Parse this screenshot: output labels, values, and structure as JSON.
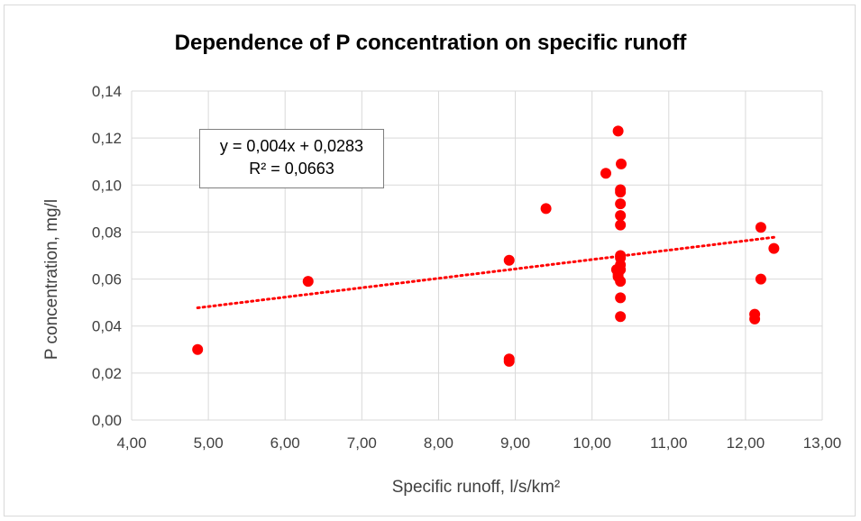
{
  "chart_data": {
    "type": "scatter",
    "title": "Dependence of P concentration on specific runoff",
    "xlabel": "Specific runoff, l/s/km²",
    "ylabel": "P concentration, mg/l",
    "xlim": [
      4.0,
      13.0
    ],
    "ylim": [
      0.0,
      0.14
    ],
    "x_ticks": [
      "4,00",
      "5,00",
      "6,00",
      "7,00",
      "8,00",
      "9,00",
      "10,00",
      "11,00",
      "12,00",
      "13,00"
    ],
    "y_ticks": [
      "0,00",
      "0,02",
      "0,04",
      "0,06",
      "0,08",
      "0,10",
      "0,12",
      "0,14"
    ],
    "x_tick_values": [
      4,
      5,
      6,
      7,
      8,
      9,
      10,
      11,
      12,
      13
    ],
    "y_tick_values": [
      0,
      0.02,
      0.04,
      0.06,
      0.08,
      0.1,
      0.12,
      0.14
    ],
    "grid": true,
    "marker_color": "#ff0000",
    "trendline_color": "#ff0000",
    "points": [
      {
        "x": 4.86,
        "y": 0.03
      },
      {
        "x": 6.3,
        "y": 0.059
      },
      {
        "x": 8.92,
        "y": 0.068
      },
      {
        "x": 8.92,
        "y": 0.026
      },
      {
        "x": 8.92,
        "y": 0.025
      },
      {
        "x": 9.4,
        "y": 0.09
      },
      {
        "x": 10.18,
        "y": 0.105
      },
      {
        "x": 10.34,
        "y": 0.123
      },
      {
        "x": 10.38,
        "y": 0.109
      },
      {
        "x": 10.37,
        "y": 0.098
      },
      {
        "x": 10.37,
        "y": 0.097
      },
      {
        "x": 10.37,
        "y": 0.092
      },
      {
        "x": 10.37,
        "y": 0.087
      },
      {
        "x": 10.37,
        "y": 0.083
      },
      {
        "x": 10.37,
        "y": 0.07
      },
      {
        "x": 10.37,
        "y": 0.069
      },
      {
        "x": 10.37,
        "y": 0.066
      },
      {
        "x": 10.32,
        "y": 0.064
      },
      {
        "x": 10.37,
        "y": 0.064
      },
      {
        "x": 10.34,
        "y": 0.062
      },
      {
        "x": 10.34,
        "y": 0.061
      },
      {
        "x": 10.37,
        "y": 0.059
      },
      {
        "x": 10.37,
        "y": 0.052
      },
      {
        "x": 10.37,
        "y": 0.044
      },
      {
        "x": 12.2,
        "y": 0.082
      },
      {
        "x": 12.37,
        "y": 0.073
      },
      {
        "x": 12.2,
        "y": 0.06
      },
      {
        "x": 12.12,
        "y": 0.045
      },
      {
        "x": 12.12,
        "y": 0.043
      }
    ],
    "trendline": {
      "type": "linear",
      "slope": 0.004,
      "intercept": 0.0283,
      "x_range": [
        4.86,
        12.37
      ],
      "equation": "y = 0,004x + 0,0283",
      "r_squared": "R² = 0,0663"
    }
  }
}
